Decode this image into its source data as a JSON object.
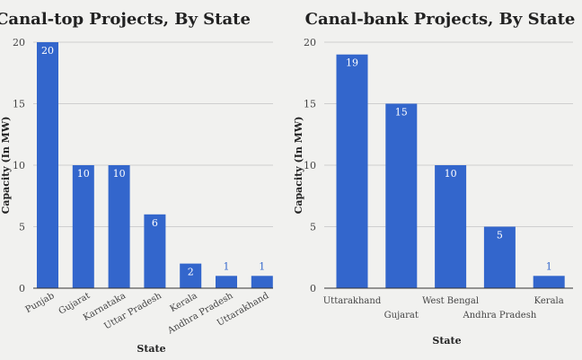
{
  "chart_data": [
    {
      "type": "bar",
      "title": "Canal-top Projects, By State",
      "xlabel": "State",
      "ylabel": "Capacity (In MW)",
      "categories": [
        "Punjab",
        "Gujarat",
        "Karnataka",
        "Uttar Pradesh",
        "Kerala",
        "Andhra Pradesh",
        "Uttarakhand"
      ],
      "values": [
        20,
        10,
        10,
        6,
        2,
        1,
        1
      ],
      "ylim": [
        0,
        20
      ],
      "yticks": [
        0,
        5,
        10,
        15,
        20
      ],
      "grid": true,
      "legend": "none",
      "bar_color": "#3366cc",
      "tick_label_style": "rotated"
    },
    {
      "type": "bar",
      "title": "Canal-bank Projects, By State",
      "xlabel": "State",
      "ylabel": "Capacity (In MW)",
      "categories": [
        "Uttarakhand",
        "Gujarat",
        "West Bengal",
        "Andhra Pradesh",
        "Kerala"
      ],
      "values": [
        19,
        15,
        10,
        5,
        1
      ],
      "ylim": [
        0,
        20
      ],
      "yticks": [
        0,
        5,
        10,
        15,
        20
      ],
      "grid": true,
      "legend": "none",
      "bar_color": "#3366cc",
      "tick_label_style": "staggered"
    }
  ]
}
